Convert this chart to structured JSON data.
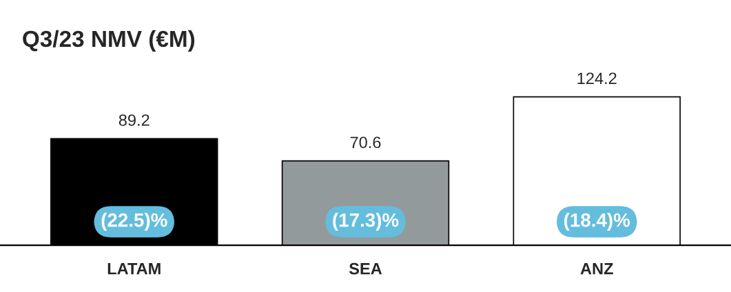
{
  "chart_data": {
    "type": "bar",
    "title": "Q3/23 NMV (€M)",
    "categories": [
      "LATAM",
      "SEA",
      "ANZ"
    ],
    "values": [
      89.2,
      70.6,
      124.2
    ],
    "colors": [
      "#000000",
      "#939a9c",
      "#ffffff"
    ],
    "data_labels": true,
    "grid": false,
    "annotations": [
      "(22.5)%",
      "(17.3)%",
      "(18.4)%"
    ]
  }
}
